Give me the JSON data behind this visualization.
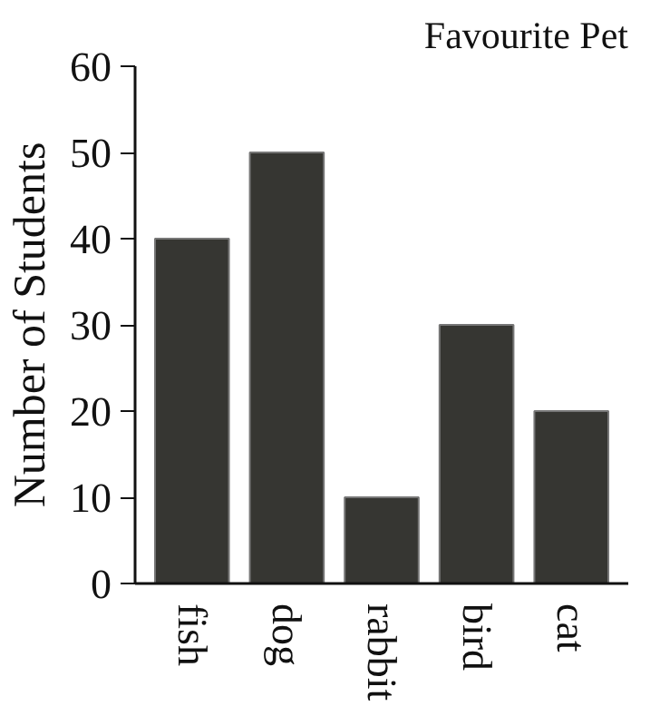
{
  "chart_data": {
    "type": "bar",
    "title": "Favourite Pet",
    "ylabel": "Number of Students",
    "categories": [
      "fish",
      "dog",
      "rabbit",
      "bird",
      "cat"
    ],
    "values": [
      40,
      50,
      10,
      30,
      20
    ],
    "color": "#363632",
    "ylim": [
      0,
      60
    ],
    "yticks": [
      0,
      10,
      20,
      30,
      40,
      50,
      60
    ],
    "grid": false
  }
}
